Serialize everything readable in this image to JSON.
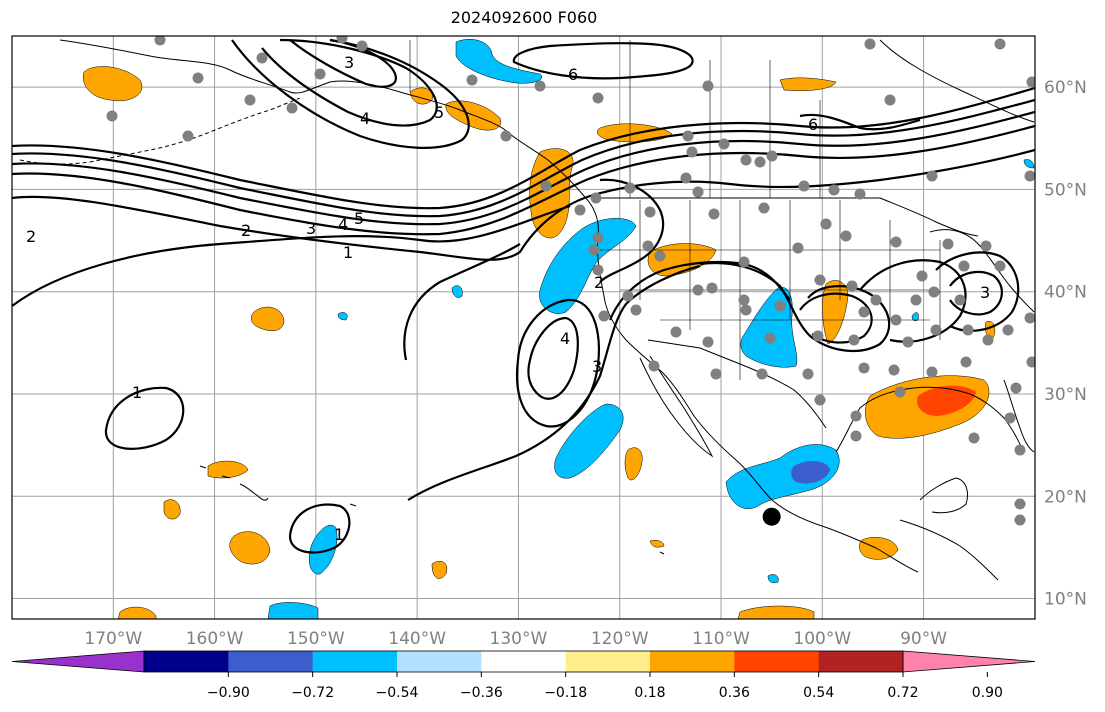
{
  "title": "2024092600 F060",
  "map": {
    "lon_range": [
      -180,
      -79
    ],
    "lat_range": [
      8,
      65
    ],
    "lon_ticks": [
      -170,
      -160,
      -150,
      -140,
      -130,
      -120,
      -110,
      -100,
      -90
    ],
    "lon_labels": [
      "170°W",
      "160°W",
      "150°W",
      "140°W",
      "130°W",
      "120°W",
      "110°W",
      "100°W",
      "90°W"
    ],
    "lat_ticks": [
      10,
      20,
      30,
      40,
      50,
      60
    ],
    "lat_labels": [
      "10°N",
      "20°N",
      "30°N",
      "40°N",
      "50°N",
      "60°N"
    ],
    "grid": true,
    "label_color": "#808080",
    "marker": {
      "name": "black-dot-marker",
      "lon": -105,
      "lat": 18
    }
  },
  "contour_labels": [
    "1",
    "2",
    "3",
    "4",
    "5",
    "6"
  ],
  "colorbar": {
    "ticks": [
      "−0.90",
      "−0.72",
      "−0.54",
      "−0.36",
      "−0.18",
      "0.18",
      "0.36",
      "0.54",
      "0.72",
      "0.90"
    ],
    "colors": [
      "#9932cc",
      "#00008b",
      "#3a5fcd",
      "#00bfff",
      "#b0e2ff",
      "#ffffff",
      "#ffec8b",
      "#ffa500",
      "#ff4500",
      "#b22222",
      "#ff82ab"
    ]
  }
}
